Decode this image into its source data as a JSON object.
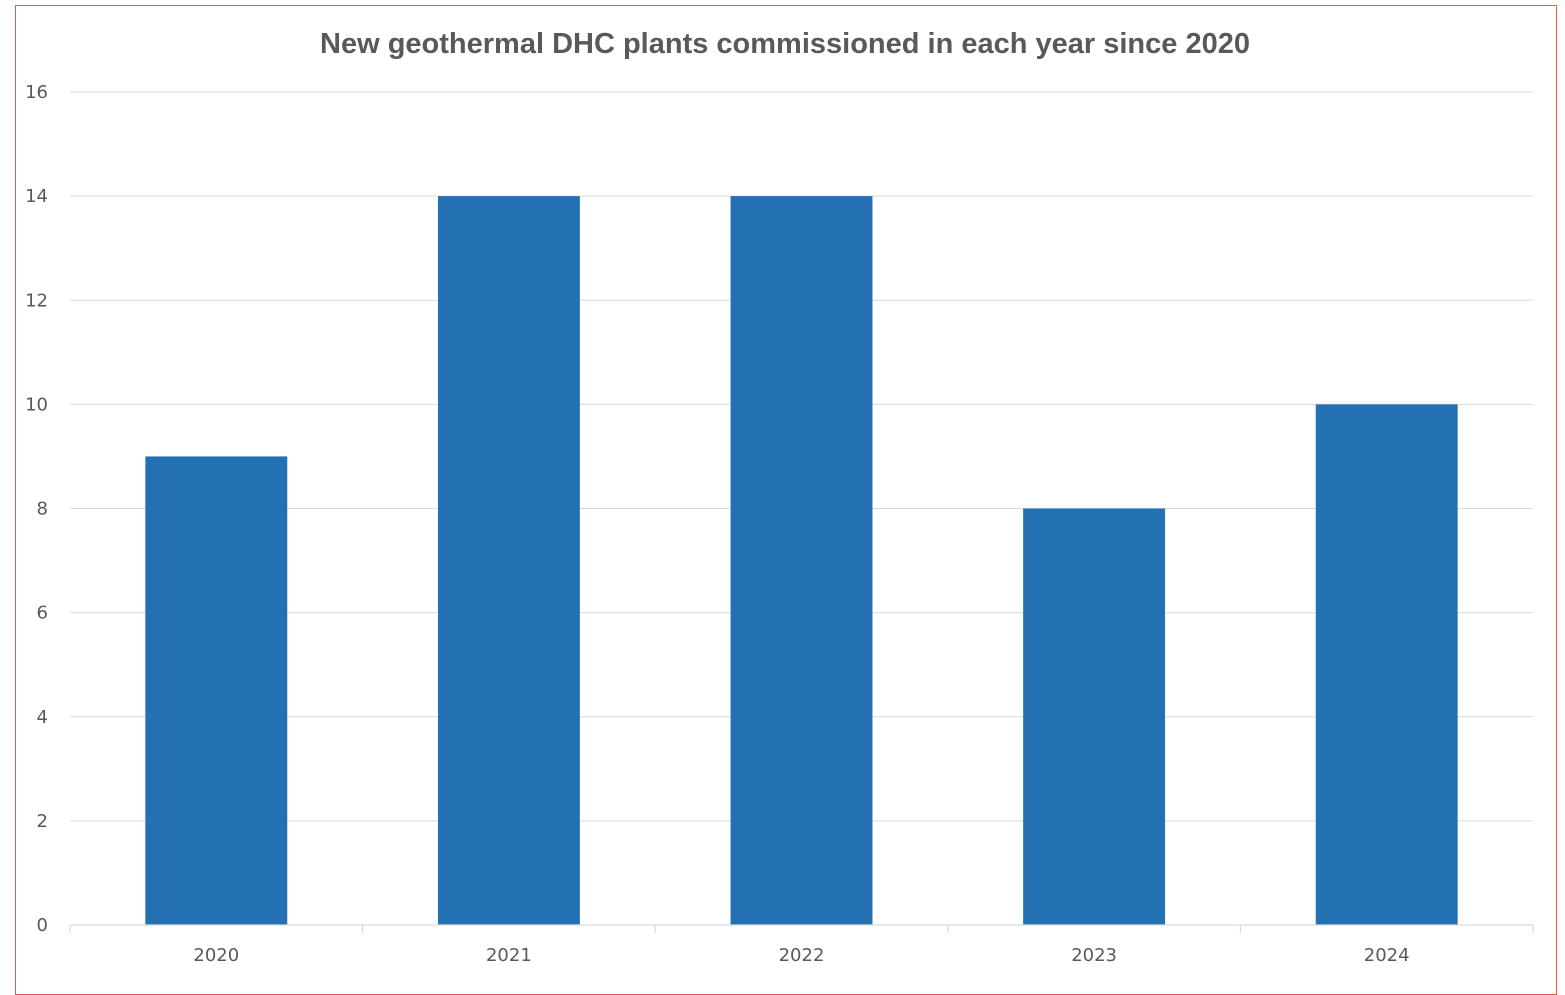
{
  "chart_data": {
    "type": "bar",
    "title": "New geothermal DHC plants commissioned in each year since 2020",
    "xlabel": "",
    "ylabel": "",
    "categories": [
      "2020",
      "2021",
      "2022",
      "2023",
      "2024"
    ],
    "values": [
      9,
      14,
      14,
      8,
      10
    ],
    "ylim": [
      0,
      16
    ],
    "yticks": [
      0,
      2,
      4,
      6,
      8,
      10,
      12,
      14,
      16
    ],
    "grid": true,
    "legend": "none",
    "bar_color": "#2370b3",
    "border_color": "#e8574b"
  }
}
